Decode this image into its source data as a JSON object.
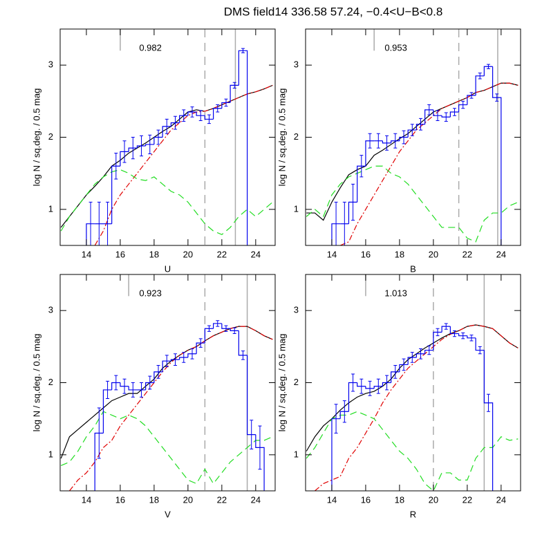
{
  "title": "DMS field14  336.58  57.24,  −0.4<U−B<0.8",
  "chart_data": [
    {
      "type": "histogram",
      "xlabel": "U",
      "ylabel": "log N / sq.deg. / 0.5 mag",
      "annotation": "0.982",
      "xlim": [
        12.45,
        25.15
      ],
      "ylim": [
        0.5,
        3.5
      ],
      "xticks": [
        14,
        16,
        18,
        20,
        22,
        24
      ],
      "yticks": [
        1,
        2,
        3
      ],
      "histogram": {
        "color": "#0000ee",
        "bins": [
          14.0,
          14.5,
          15.0,
          15.5,
          16.0,
          16.5,
          17.0,
          17.5,
          18.0,
          18.5,
          19.0,
          19.5,
          20.0,
          20.5,
          21.0,
          21.5,
          22.0,
          22.5,
          23.0,
          23.5
        ],
        "values": [
          0.8,
          0.8,
          0.8,
          1.6,
          1.8,
          1.85,
          1.88,
          1.9,
          2.0,
          2.15,
          2.2,
          2.3,
          2.35,
          2.3,
          2.25,
          2.4,
          2.48,
          2.72,
          3.2
        ],
        "errors": [
          0.3,
          0.3,
          0.3,
          0.18,
          0.15,
          0.15,
          0.14,
          0.13,
          0.1,
          0.1,
          0.09,
          0.08,
          0.07,
          0.07,
          0.06,
          0.05,
          0.05,
          0.04,
          0.03
        ]
      },
      "x": [
        12.5,
        13,
        13.5,
        14,
        14.5,
        15,
        15.5,
        16,
        16.5,
        17,
        17.5,
        18,
        18.5,
        19,
        19.5,
        20,
        20.5,
        21,
        21.5,
        22,
        22.5,
        23,
        23.5,
        24,
        24.5,
        25
      ],
      "lines": [
        {
          "color": "#000000",
          "dash": "solid",
          "values": [
            0.75,
            0.9,
            1.05,
            1.2,
            1.32,
            1.45,
            1.6,
            1.68,
            1.78,
            1.85,
            1.92,
            2.0,
            2.08,
            2.15,
            2.25,
            2.35,
            2.38,
            2.36,
            2.4,
            2.45,
            2.5,
            2.55,
            2.6,
            2.63,
            2.67,
            2.72
          ]
        },
        {
          "color": "#e00000",
          "dash": "dashdot",
          "values": [
            null,
            null,
            null,
            null,
            0.5,
            0.7,
            1.0,
            1.2,
            1.35,
            1.5,
            1.65,
            1.8,
            1.95,
            2.1,
            2.2,
            2.3,
            2.35,
            2.36,
            2.4,
            2.45,
            2.5,
            2.55,
            2.6,
            2.63,
            2.67,
            2.72
          ]
        },
        {
          "color": "#22dd22",
          "dash": "dashed",
          "values": [
            0.7,
            0.9,
            1.05,
            1.2,
            1.35,
            1.45,
            1.52,
            1.55,
            1.5,
            1.42,
            1.4,
            1.45,
            1.35,
            1.25,
            1.2,
            1.1,
            0.95,
            0.8,
            0.7,
            0.65,
            0.75,
            0.9,
            1.0,
            0.9,
            1.0,
            1.1
          ]
        }
      ],
      "vlines": [
        {
          "value": 16.0,
          "style": "short"
        },
        {
          "value": 21.0,
          "style": "dashed"
        },
        {
          "value": 22.8,
          "style": "solid"
        }
      ]
    },
    {
      "type": "histogram",
      "xlabel": "B",
      "ylabel": "log N / sq.deg. / 0.5 mag",
      "annotation": "0.953",
      "xlim": [
        12.45,
        25.15
      ],
      "ylim": [
        0.5,
        3.5
      ],
      "xticks": [
        14,
        16,
        18,
        20,
        22,
        24
      ],
      "yticks": [
        1,
        2,
        3
      ],
      "histogram": {
        "color": "#0000ee",
        "bins": [
          14.0,
          14.5,
          15.0,
          15.5,
          16.0,
          16.5,
          17.0,
          17.5,
          18.0,
          18.5,
          19.0,
          19.5,
          20.0,
          20.5,
          21.0,
          21.5,
          22.0,
          22.5,
          23.0,
          23.5,
          24.0
        ],
        "values": [
          0.8,
          0.8,
          1.1,
          1.6,
          1.95,
          1.95,
          1.92,
          1.95,
          2.0,
          2.1,
          2.18,
          2.38,
          2.3,
          2.28,
          2.35,
          2.45,
          2.58,
          2.85,
          2.98,
          2.55
        ],
        "errors": [
          0.3,
          0.3,
          0.25,
          0.15,
          0.1,
          0.1,
          0.1,
          0.1,
          0.09,
          0.08,
          0.08,
          0.07,
          0.07,
          0.06,
          0.05,
          0.05,
          0.04,
          0.04,
          0.03,
          0.05
        ]
      },
      "x": [
        12.5,
        13,
        13.5,
        14,
        14.5,
        15,
        15.5,
        16,
        16.5,
        17,
        17.5,
        18,
        18.5,
        19,
        19.5,
        20,
        20.5,
        21,
        21.5,
        22,
        22.5,
        23,
        23.5,
        24,
        24.5,
        25
      ],
      "lines": [
        {
          "color": "#000000",
          "dash": "solid",
          "values": [
            0.95,
            0.95,
            0.85,
            1.1,
            1.3,
            1.48,
            1.55,
            1.6,
            1.75,
            1.82,
            1.9,
            1.98,
            2.05,
            2.15,
            2.25,
            2.35,
            2.4,
            2.45,
            2.5,
            2.55,
            2.62,
            2.65,
            2.7,
            2.75,
            2.75,
            2.72
          ]
        },
        {
          "color": "#e00000",
          "dash": "dashdot",
          "values": [
            null,
            null,
            null,
            null,
            0.5,
            0.55,
            0.8,
            1.0,
            1.2,
            1.4,
            1.6,
            1.8,
            1.95,
            2.1,
            2.2,
            2.3,
            2.4,
            2.45,
            2.5,
            2.55,
            2.62,
            2.65,
            2.7,
            2.75,
            2.75,
            2.72
          ]
        },
        {
          "color": "#22dd22",
          "dash": "dashed",
          "values": [
            0.9,
            1.0,
            0.9,
            1.2,
            1.35,
            1.45,
            1.5,
            1.55,
            1.6,
            1.6,
            1.5,
            1.45,
            1.35,
            1.2,
            1.05,
            0.9,
            0.75,
            0.75,
            0.75,
            0.6,
            0.55,
            0.85,
            0.95,
            0.95,
            1.05,
            1.1
          ]
        }
      ],
      "vlines": [
        {
          "value": 16.5,
          "style": "short"
        },
        {
          "value": 21.5,
          "style": "dashed"
        },
        {
          "value": 23.8,
          "style": "solid"
        }
      ]
    },
    {
      "type": "histogram",
      "xlabel": "V",
      "ylabel": "log N / sq.deg. / 0.5 mag",
      "annotation": "0.923",
      "xlim": [
        12.45,
        25.15
      ],
      "ylim": [
        0.5,
        3.5
      ],
      "xticks": [
        14,
        16,
        18,
        20,
        22,
        24
      ],
      "yticks": [
        1,
        2,
        3
      ],
      "histogram": {
        "color": "#0000ee",
        "bins": [
          14.5,
          15.0,
          15.5,
          16.0,
          16.5,
          17.0,
          17.5,
          18.0,
          18.5,
          19.0,
          19.5,
          20.0,
          20.5,
          21.0,
          21.5,
          22.0,
          22.5,
          23.0,
          23.5,
          24.0,
          24.5
        ],
        "values": [
          1.3,
          1.9,
          2.0,
          1.95,
          1.9,
          1.9,
          2.0,
          2.15,
          2.3,
          2.32,
          2.35,
          2.4,
          2.55,
          2.75,
          2.82,
          2.75,
          2.72,
          2.38,
          1.28,
          1.1
        ],
        "errors": [
          0.35,
          0.12,
          0.1,
          0.1,
          0.1,
          0.1,
          0.09,
          0.09,
          0.08,
          0.08,
          0.07,
          0.07,
          0.06,
          0.04,
          0.04,
          0.04,
          0.04,
          0.06,
          0.2,
          0.3
        ]
      },
      "x": [
        12.5,
        13,
        13.5,
        14,
        14.5,
        15,
        15.5,
        16,
        16.5,
        17,
        17.5,
        18,
        18.5,
        19,
        19.5,
        20,
        20.5,
        21,
        21.5,
        22,
        22.5,
        23,
        23.5,
        24,
        24.5,
        25
      ],
      "lines": [
        {
          "color": "#000000",
          "dash": "solid",
          "values": [
            0.95,
            1.25,
            1.35,
            1.45,
            1.55,
            1.65,
            1.75,
            1.8,
            1.85,
            1.85,
            1.95,
            2.05,
            2.2,
            2.3,
            2.38,
            2.45,
            2.5,
            2.58,
            2.65,
            2.7,
            2.75,
            2.78,
            2.78,
            2.72,
            2.65,
            2.6
          ]
        },
        {
          "color": "#e00000",
          "dash": "dashdot",
          "values": [
            null,
            0.5,
            0.65,
            0.75,
            0.9,
            1.1,
            1.2,
            1.4,
            1.55,
            1.7,
            1.85,
            2.0,
            2.15,
            2.28,
            2.38,
            2.45,
            2.5,
            2.58,
            2.65,
            2.7,
            2.75,
            2.78,
            2.78,
            2.72,
            2.65,
            2.6
          ]
        },
        {
          "color": "#22dd22",
          "dash": "dashed",
          "values": [
            0.85,
            0.9,
            1.05,
            1.25,
            1.4,
            1.6,
            1.55,
            1.5,
            1.55,
            1.5,
            1.4,
            1.25,
            1.1,
            0.95,
            0.8,
            0.65,
            0.6,
            0.8,
            0.6,
            0.75,
            0.9,
            1.0,
            1.1,
            1.2,
            1.2,
            1.25
          ]
        }
      ],
      "vlines": [
        {
          "value": 16.5,
          "style": "short"
        },
        {
          "value": 21.0,
          "style": "dashed"
        },
        {
          "value": 23.5,
          "style": "solid"
        }
      ]
    },
    {
      "type": "histogram",
      "xlabel": "R",
      "ylabel": "log N / sq.deg. / 0.5 mag",
      "annotation": "1.013",
      "xlim": [
        12.45,
        25.15
      ],
      "ylim": [
        0.5,
        3.5
      ],
      "xticks": [
        14,
        16,
        18,
        20,
        22,
        24
      ],
      "yticks": [
        1,
        2,
        3
      ],
      "histogram": {
        "color": "#0000ee",
        "bins": [
          14.0,
          14.5,
          15.0,
          15.5,
          16.0,
          16.5,
          17.0,
          17.5,
          18.0,
          18.5,
          19.0,
          19.5,
          20.0,
          20.5,
          21.0,
          21.5,
          22.0,
          22.5,
          23.0,
          23.5
        ],
        "values": [
          1.5,
          1.6,
          2.0,
          1.95,
          1.92,
          1.95,
          2.0,
          2.15,
          2.25,
          2.35,
          2.4,
          2.45,
          2.7,
          2.78,
          2.68,
          2.65,
          2.62,
          2.45,
          1.72
        ],
        "errors": [
          0.2,
          0.15,
          0.12,
          0.1,
          0.1,
          0.1,
          0.1,
          0.09,
          0.08,
          0.07,
          0.07,
          0.06,
          0.05,
          0.04,
          0.04,
          0.04,
          0.04,
          0.05,
          0.12
        ]
      },
      "x": [
        12.5,
        13,
        13.5,
        14,
        14.5,
        15,
        15.5,
        16,
        16.5,
        17,
        17.5,
        18,
        18.5,
        19,
        19.5,
        20,
        20.5,
        21,
        21.5,
        22,
        22.5,
        23,
        23.5,
        24,
        24.5,
        25
      ],
      "lines": [
        {
          "color": "#000000",
          "dash": "solid",
          "values": [
            1.05,
            1.25,
            1.4,
            1.5,
            1.62,
            1.72,
            1.8,
            1.85,
            1.88,
            1.95,
            2.05,
            2.2,
            2.32,
            2.4,
            2.48,
            2.55,
            2.62,
            2.68,
            2.72,
            2.78,
            2.8,
            2.78,
            2.75,
            2.65,
            2.55,
            2.48
          ]
        },
        {
          "color": "#e00000",
          "dash": "dashdot",
          "values": [
            null,
            0.5,
            0.6,
            0.65,
            0.7,
            0.95,
            1.1,
            1.3,
            1.5,
            1.72,
            1.9,
            2.05,
            2.2,
            2.3,
            2.4,
            2.5,
            2.6,
            2.67,
            2.72,
            2.78,
            2.8,
            2.78,
            2.75,
            2.65,
            2.55,
            2.48
          ]
        },
        {
          "color": "#22dd22",
          "dash": "dashed",
          "values": [
            0.95,
            1.1,
            1.3,
            1.5,
            1.55,
            1.55,
            1.6,
            1.55,
            1.5,
            1.35,
            1.2,
            1.05,
            0.95,
            0.8,
            0.6,
            0.5,
            0.75,
            0.75,
            0.65,
            0.65,
            0.95,
            1.1,
            1.1,
            1.25,
            1.2,
            1.22
          ]
        }
      ],
      "vlines": [
        {
          "value": 16.0,
          "style": "short"
        },
        {
          "value": 20.0,
          "style": "dashed"
        },
        {
          "value": 23.0,
          "style": "solid"
        }
      ]
    }
  ]
}
